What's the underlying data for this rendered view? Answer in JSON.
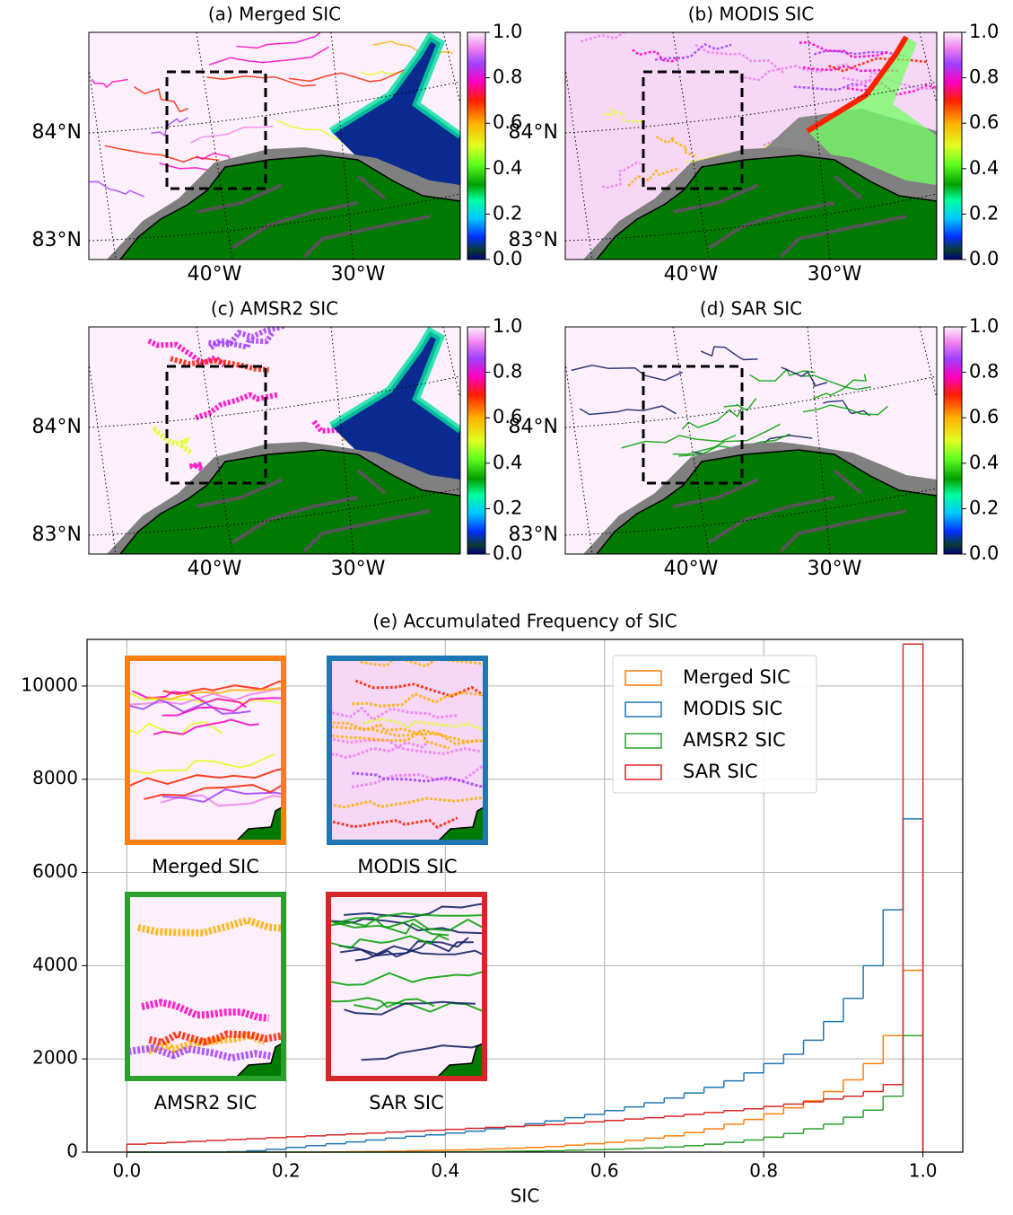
{
  "chart_data": [
    {
      "type": "map",
      "title": "(a) Merged SIC",
      "lat_labels": [
        "84°N",
        "83°N"
      ],
      "lon_labels": [
        "40°W",
        "30°W"
      ],
      "colorbar_lim": [
        0,
        1
      ],
      "colorbar_ticks": [
        {
          "value": 0,
          "label": "0.0"
        },
        {
          "value": 0.2,
          "label": "0.2"
        },
        {
          "value": 0.4,
          "label": "0.4"
        },
        {
          "value": 0.6,
          "label": "0.6"
        },
        {
          "value": 0.8,
          "label": "0.8"
        },
        {
          "value": 1,
          "label": "1.0"
        }
      ]
    },
    {
      "type": "map",
      "title": "(b) MODIS SIC",
      "lat_labels": [
        "84°N",
        "83°N"
      ],
      "lon_labels": [
        "40°W",
        "30°W"
      ],
      "colorbar_lim": [
        0,
        1
      ],
      "colorbar_ticks": [
        {
          "value": 0,
          "label": "0.0"
        },
        {
          "value": 0.2,
          "label": "0.2"
        },
        {
          "value": 0.4,
          "label": "0.4"
        },
        {
          "value": 0.6,
          "label": "0.6"
        },
        {
          "value": 0.8,
          "label": "0.8"
        },
        {
          "value": 1,
          "label": "1.0"
        }
      ]
    },
    {
      "type": "map",
      "title": "(c) AMSR2 SIC",
      "lat_labels": [
        "84°N",
        "83°N"
      ],
      "lon_labels": [
        "40°W",
        "30°W"
      ],
      "colorbar_lim": [
        0,
        1
      ],
      "colorbar_ticks": [
        {
          "value": 0,
          "label": "0.0"
        },
        {
          "value": 0.2,
          "label": "0.2"
        },
        {
          "value": 0.4,
          "label": "0.4"
        },
        {
          "value": 0.6,
          "label": "0.6"
        },
        {
          "value": 0.8,
          "label": "0.8"
        },
        {
          "value": 1,
          "label": "1.0"
        }
      ]
    },
    {
      "type": "map",
      "title": "(d) SAR SIC",
      "lat_labels": [
        "84°N",
        "83°N"
      ],
      "lon_labels": [
        "40°W",
        "30°W"
      ],
      "colorbar_lim": [
        0,
        1
      ],
      "colorbar_ticks": [
        {
          "value": 0,
          "label": "0.0"
        },
        {
          "value": 0.2,
          "label": "0.2"
        },
        {
          "value": 0.4,
          "label": "0.4"
        },
        {
          "value": 0.6,
          "label": "0.6"
        },
        {
          "value": 0.8,
          "label": "0.8"
        },
        {
          "value": 1,
          "label": "1.0"
        }
      ]
    },
    {
      "type": "histogram",
      "title": "(e) Accumulated Frequency of SIC",
      "xlabel": "SIC",
      "bins": [
        0,
        0.025,
        0.05,
        0.075,
        0.1,
        0.125,
        0.15,
        0.175,
        0.2,
        0.225,
        0.25,
        0.275,
        0.3,
        0.325,
        0.35,
        0.375,
        0.4,
        0.425,
        0.45,
        0.475,
        0.5,
        0.525,
        0.55,
        0.575,
        0.6,
        0.625,
        0.65,
        0.675,
        0.7,
        0.725,
        0.75,
        0.775,
        0.8,
        0.825,
        0.85,
        0.875,
        0.9,
        0.925,
        0.95,
        0.975,
        1
      ],
      "series": [
        {
          "name": "Merged SIC",
          "color": "#ff7f0e",
          "values": [
            0,
            0,
            0,
            0,
            0,
            0,
            0,
            0,
            0,
            0,
            5,
            10,
            15,
            20,
            30,
            35,
            45,
            55,
            70,
            85,
            100,
            120,
            150,
            180,
            210,
            250,
            300,
            350,
            420,
            500,
            600,
            700,
            820,
            950,
            1100,
            1300,
            1550,
            1900,
            2500,
            3900
          ]
        },
        {
          "name": "MODIS SIC",
          "color": "#1f77b4",
          "values": [
            0,
            0,
            0,
            0,
            0,
            10,
            30,
            60,
            100,
            140,
            180,
            220,
            260,
            300,
            340,
            370,
            410,
            450,
            500,
            550,
            610,
            670,
            740,
            810,
            890,
            970,
            1060,
            1160,
            1270,
            1390,
            1530,
            1700,
            1900,
            2100,
            2400,
            2800,
            3300,
            4000,
            5200,
            7150
          ]
        },
        {
          "name": "AMSR2 SIC",
          "color": "#2ca02c",
          "values": [
            0,
            0,
            0,
            0,
            0,
            0,
            0,
            0,
            0,
            0,
            0,
            0,
            0,
            0,
            0,
            0,
            5,
            10,
            15,
            20,
            25,
            30,
            40,
            50,
            60,
            75,
            90,
            110,
            140,
            170,
            210,
            260,
            320,
            400,
            500,
            600,
            750,
            900,
            1200,
            2500
          ]
        },
        {
          "name": "SAR SIC",
          "color": "#d62728",
          "values": [
            170,
            190,
            210,
            230,
            250,
            270,
            290,
            310,
            330,
            350,
            370,
            390,
            410,
            430,
            450,
            470,
            490,
            510,
            530,
            550,
            570,
            590,
            620,
            650,
            680,
            710,
            740,
            770,
            810,
            850,
            890,
            930,
            980,
            1030,
            1080,
            1140,
            1200,
            1300,
            1450,
            10900
          ]
        }
      ],
      "xlim": [
        -0.05,
        1.05
      ],
      "ylim": [
        0,
        11000
      ],
      "xticks": [
        {
          "value": 0,
          "label": "0.0"
        },
        {
          "value": 0.2,
          "label": "0.2"
        },
        {
          "value": 0.4,
          "label": "0.4"
        },
        {
          "value": 0.6,
          "label": "0.6"
        },
        {
          "value": 0.8,
          "label": "0.8"
        },
        {
          "value": 1,
          "label": "1.0"
        }
      ],
      "yticks": [
        0,
        2000,
        4000,
        6000,
        8000,
        10000
      ],
      "grid": true,
      "legend": "upper right",
      "insets": [
        {
          "label": "Merged SIC",
          "color": "#ff7f0e"
        },
        {
          "label": "MODIS SIC",
          "color": "#1f77b4"
        },
        {
          "label": "AMSR2 SIC",
          "color": "#2ca02c"
        },
        {
          "label": "SAR SIC",
          "color": "#d62728"
        }
      ]
    }
  ]
}
